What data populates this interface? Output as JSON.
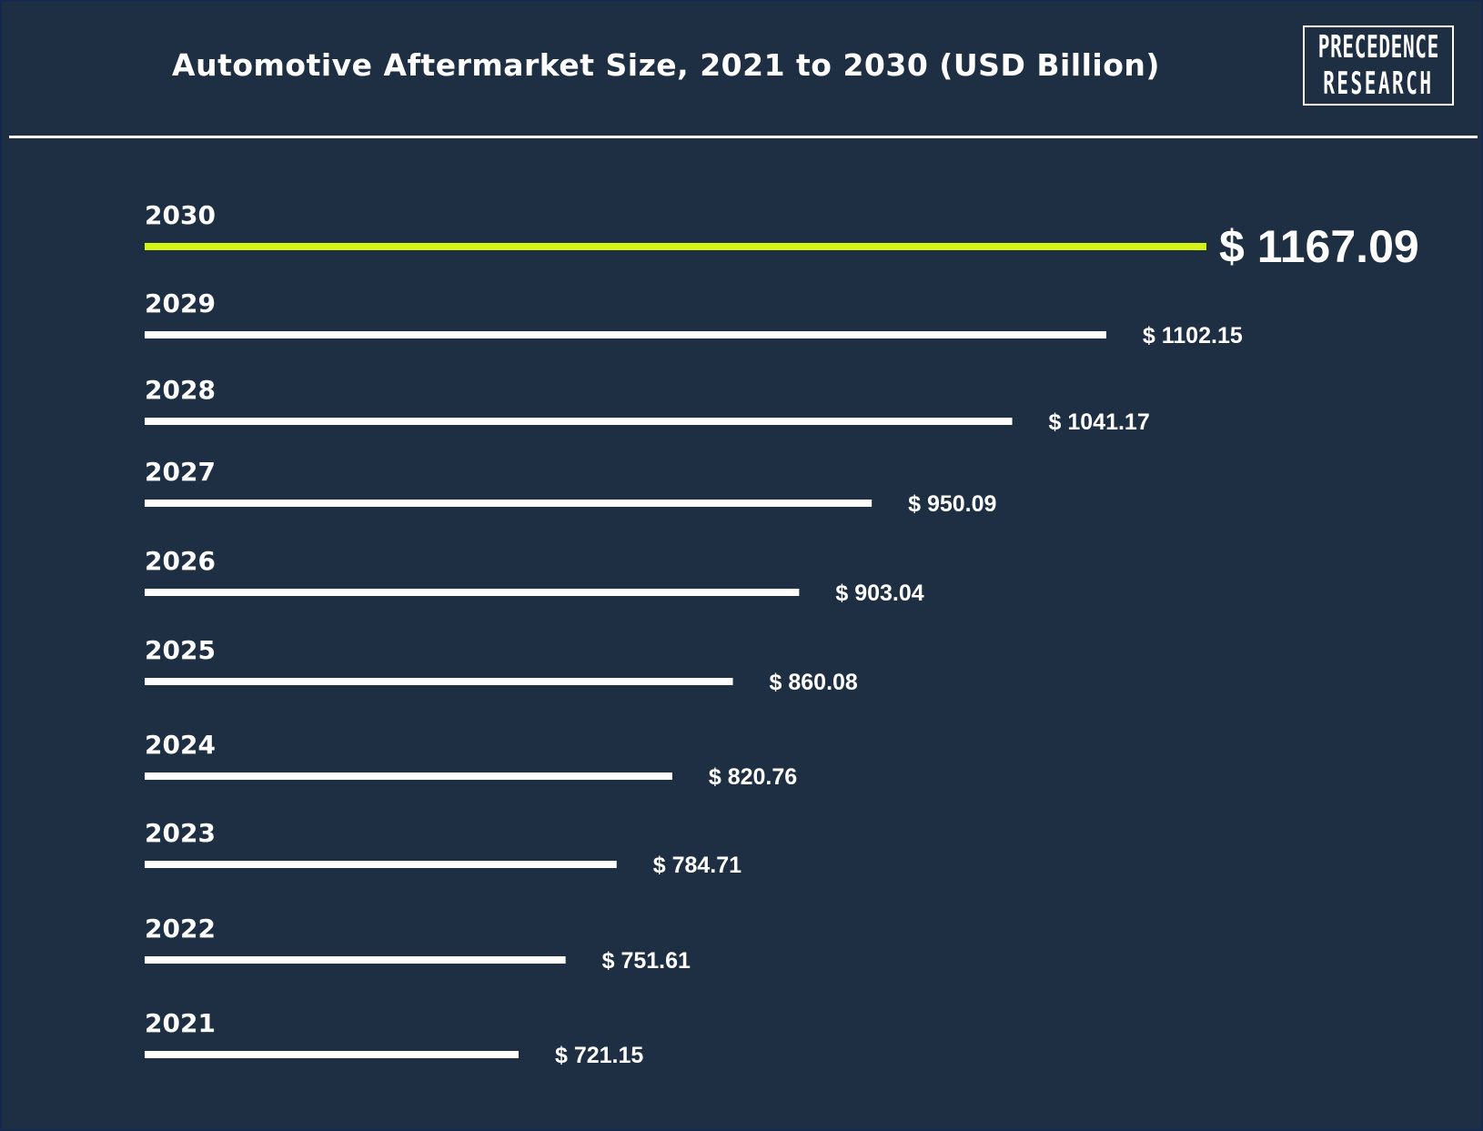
{
  "header": {
    "title": "Automotive Aftermarket Size, 2021 to 2030 (USD Billion)",
    "logo_line1": "PRECEDENCE",
    "logo_line2": "RESEARCH"
  },
  "colors": {
    "background": "#1e2f43",
    "bar": "#ffffff",
    "highlight_bar": "#d4f215",
    "text": "#ffffff"
  },
  "chart_data": {
    "type": "bar",
    "orientation": "horizontal",
    "title": "Automotive Aftermarket Size, 2021 to 2030 (USD Billion)",
    "categories": [
      "2030",
      "2029",
      "2028",
      "2027",
      "2026",
      "2025",
      "2024",
      "2023",
      "2022",
      "2021"
    ],
    "values": [
      1167.09,
      1102.15,
      1041.17,
      950.09,
      903.04,
      860.08,
      820.76,
      784.71,
      751.61,
      721.15
    ],
    "labels": [
      "$ 1167.09",
      "$ 1102.15",
      "$ 1041.17",
      "$ 950.09",
      "$ 903.04",
      "$ 860.08",
      "$ 820.76",
      "$ 784.71",
      "$ 751.61",
      "$ 721.15"
    ],
    "highlight": "2030",
    "grid": false,
    "legend": false
  }
}
